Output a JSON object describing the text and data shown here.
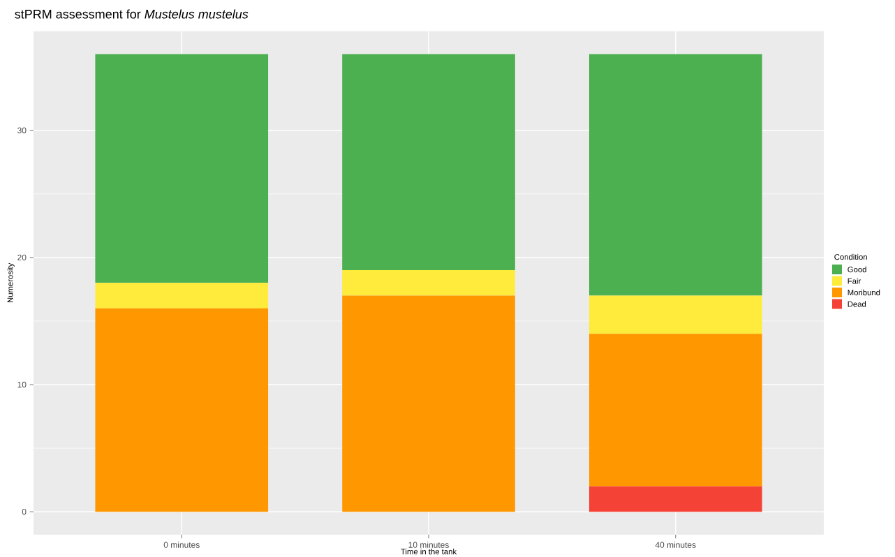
{
  "chart_data": {
    "type": "bar",
    "title": "stPRM assessment for *Mustelus mustelus*",
    "xlabel": "Time in the tank",
    "ylabel": "Numerosity",
    "legend_title": "Condition",
    "categories": [
      "0 minutes",
      "10 minutes",
      "40 minutes"
    ],
    "stacked": true,
    "ylim": [
      -1.8,
      37.8
    ],
    "yticks": [
      0,
      10,
      20,
      30
    ],
    "grid": true,
    "legend": "right",
    "series": [
      {
        "name": "Dead",
        "color": "#f44336",
        "values": [
          0,
          0,
          2
        ]
      },
      {
        "name": "Moribund",
        "color": "#ff9800",
        "values": [
          16,
          17,
          12
        ]
      },
      {
        "name": "Fair",
        "color": "#ffeb3b",
        "values": [
          2,
          2,
          3
        ]
      },
      {
        "name": "Good",
        "color": "#4caf50",
        "values": [
          18,
          17,
          19
        ]
      }
    ]
  }
}
